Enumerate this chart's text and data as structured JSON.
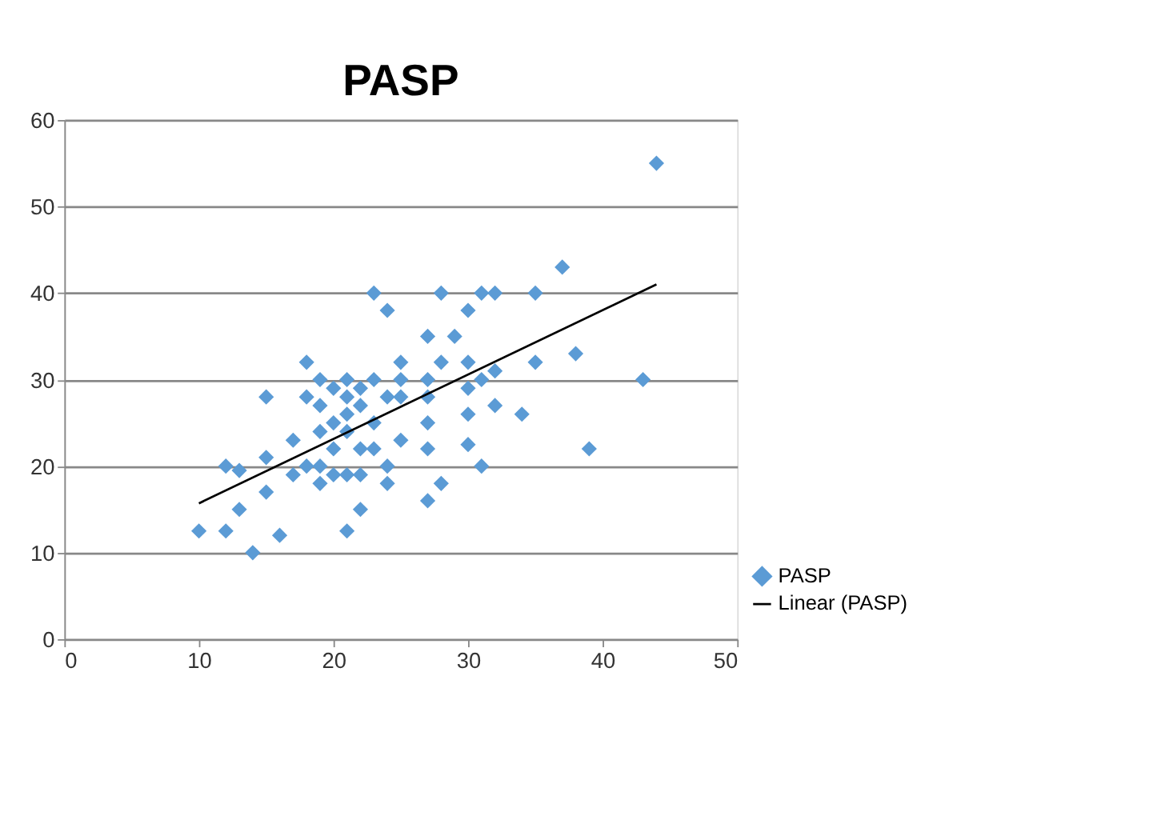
{
  "chart_data": {
    "type": "scatter",
    "title": "PASP",
    "xlim": [
      0,
      50
    ],
    "ylim": [
      0,
      60
    ],
    "xticks": [
      0,
      10,
      20,
      30,
      40,
      50
    ],
    "yticks": [
      0,
      10,
      20,
      30,
      40,
      50,
      60
    ],
    "grid": "y",
    "legend": "bottom right",
    "series": [
      {
        "name": "PASP",
        "marker": "diamond",
        "color": "#5b9bd5",
        "x": [
          10,
          12,
          12,
          13,
          13,
          14,
          15,
          15,
          15,
          16,
          17,
          17,
          18,
          18,
          18,
          19,
          19,
          19,
          19,
          19,
          20,
          20,
          20,
          20,
          21,
          21,
          21,
          21,
          21,
          21,
          22,
          22,
          22,
          22,
          22,
          23,
          23,
          23,
          23,
          24,
          24,
          24,
          24,
          25,
          25,
          25,
          25,
          27,
          27,
          27,
          27,
          27,
          27,
          28,
          28,
          28,
          29,
          30,
          30,
          30,
          30,
          30,
          31,
          31,
          31,
          32,
          32,
          32,
          34,
          35,
          35,
          37,
          38,
          39,
          43,
          44
        ],
        "values": [
          12.5,
          12.5,
          20,
          19.5,
          15,
          10,
          21,
          28,
          17,
          12,
          23,
          19,
          32,
          28,
          20,
          30,
          27,
          24,
          18,
          20,
          29,
          25,
          22,
          19,
          30,
          28,
          26,
          24,
          12.5,
          19,
          29,
          27,
          22,
          19,
          15,
          40,
          30,
          25,
          22,
          38,
          20,
          18,
          28,
          32,
          30,
          28,
          23,
          35,
          30,
          28,
          25,
          22,
          16,
          40,
          32,
          18,
          35,
          38,
          32,
          29,
          26,
          22.5,
          40,
          30,
          20,
          40,
          31,
          27,
          26,
          40,
          32,
          43,
          33,
          22,
          30,
          55
        ]
      },
      {
        "name": "Linear (PASP)",
        "type": "line",
        "color": "#000000",
        "line_style": "solid",
        "x": [
          10,
          44
        ],
        "values": [
          15.7,
          41
        ]
      }
    ]
  }
}
